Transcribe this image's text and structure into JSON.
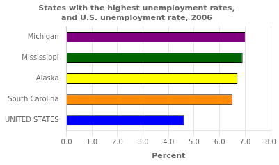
{
  "chart_data": {
    "type": "bar",
    "orientation": "horizontal",
    "title": "States with the highest unemployment rates,\nand U.S. unemployment rate, 2006",
    "categories": [
      "UNITED STATES",
      "South Carolina",
      "Alaska",
      "Mississippi",
      "Michigan"
    ],
    "values": [
      4.6,
      6.5,
      6.7,
      6.9,
      7.0
    ],
    "colors": [
      "#0000FF",
      "#FF8C00",
      "#FFFF00",
      "#006400",
      "#800080"
    ],
    "xlabel": "Percent",
    "xlim": [
      0,
      8.0
    ],
    "xticks": [
      {
        "value": 0.0,
        "label": "0.0"
      },
      {
        "value": 1.0,
        "label": "1.0"
      },
      {
        "value": 2.0,
        "label": "2.0"
      },
      {
        "value": 3.0,
        "label": "3.0"
      },
      {
        "value": 4.0,
        "label": "4.0"
      },
      {
        "value": 5.0,
        "label": "5.0"
      },
      {
        "value": 6.0,
        "label": "6.0"
      },
      {
        "value": 7.0,
        "label": "7.0"
      },
      {
        "value": 8.0,
        "label": "8.0"
      }
    ],
    "grid": true
  }
}
